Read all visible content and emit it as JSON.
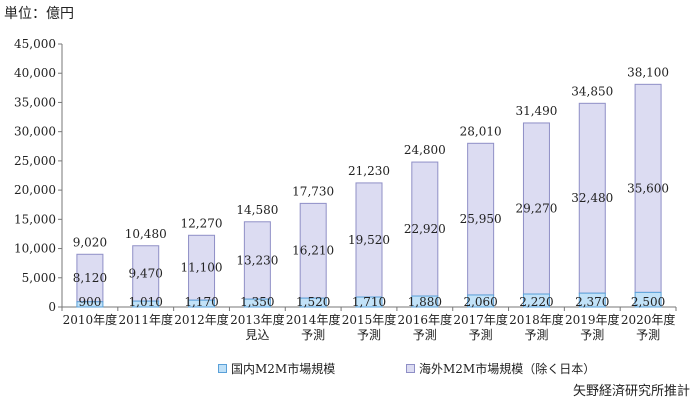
{
  "unit_label": "単位：億円",
  "source_label": "矢野経済研究所推計",
  "colors": {
    "domestic_fill": "#c2e2f8",
    "domestic_stroke": "#5aa0d8",
    "overseas_fill": "#dcdcf2",
    "overseas_stroke": "#8f8fc6"
  },
  "chart_data": {
    "type": "bar",
    "stacked": true,
    "categories": [
      [
        "2010年度"
      ],
      [
        "2011年度"
      ],
      [
        "2012年度"
      ],
      [
        "2013年度",
        "見込"
      ],
      [
        "2014年度",
        "予測"
      ],
      [
        "2015年度",
        "予測"
      ],
      [
        "2016年度",
        "予測"
      ],
      [
        "2017年度",
        "予測"
      ],
      [
        "2018年度",
        "予測"
      ],
      [
        "2019年度",
        "予測"
      ],
      [
        "2020年度",
        "予測"
      ]
    ],
    "series": [
      {
        "name": "国内M2M市場規模",
        "values": [
          900,
          1010,
          1170,
          1350,
          1520,
          1710,
          1880,
          2060,
          2220,
          2370,
          2500
        ],
        "labels": [
          "900",
          "1,010",
          "1,170",
          "1,350",
          "1,520",
          "1,710",
          "1,880",
          "2,060",
          "2,220",
          "2,370",
          "2,500"
        ]
      },
      {
        "name": "海外M2M市場規模（除く日本）",
        "values": [
          8120,
          9470,
          11100,
          13230,
          16210,
          19520,
          22920,
          25950,
          29270,
          32480,
          35600
        ],
        "labels": [
          "8,120",
          "9,470",
          "11,100",
          "13,230",
          "16,210",
          "19,520",
          "22,920",
          "25,950",
          "29,270",
          "32,480",
          "35,600"
        ]
      }
    ],
    "totals": [
      9020,
      10480,
      12270,
      14580,
      17730,
      21230,
      24800,
      28010,
      31490,
      34850,
      38100
    ],
    "total_labels": [
      "9,020",
      "10,480",
      "12,270",
      "14,580",
      "17,730",
      "21,230",
      "24,800",
      "28,010",
      "31,490",
      "34,850",
      "38,100"
    ],
    "ylim": [
      0,
      45000
    ],
    "yticks": [
      0,
      5000,
      10000,
      15000,
      20000,
      25000,
      30000,
      35000,
      40000,
      45000
    ],
    "ytick_labels": [
      "0",
      "5,000",
      "10,000",
      "15,000",
      "20,000",
      "25,000",
      "30,000",
      "35,000",
      "40,000",
      "45,000"
    ],
    "grid": false,
    "legend_position": "bottom"
  }
}
